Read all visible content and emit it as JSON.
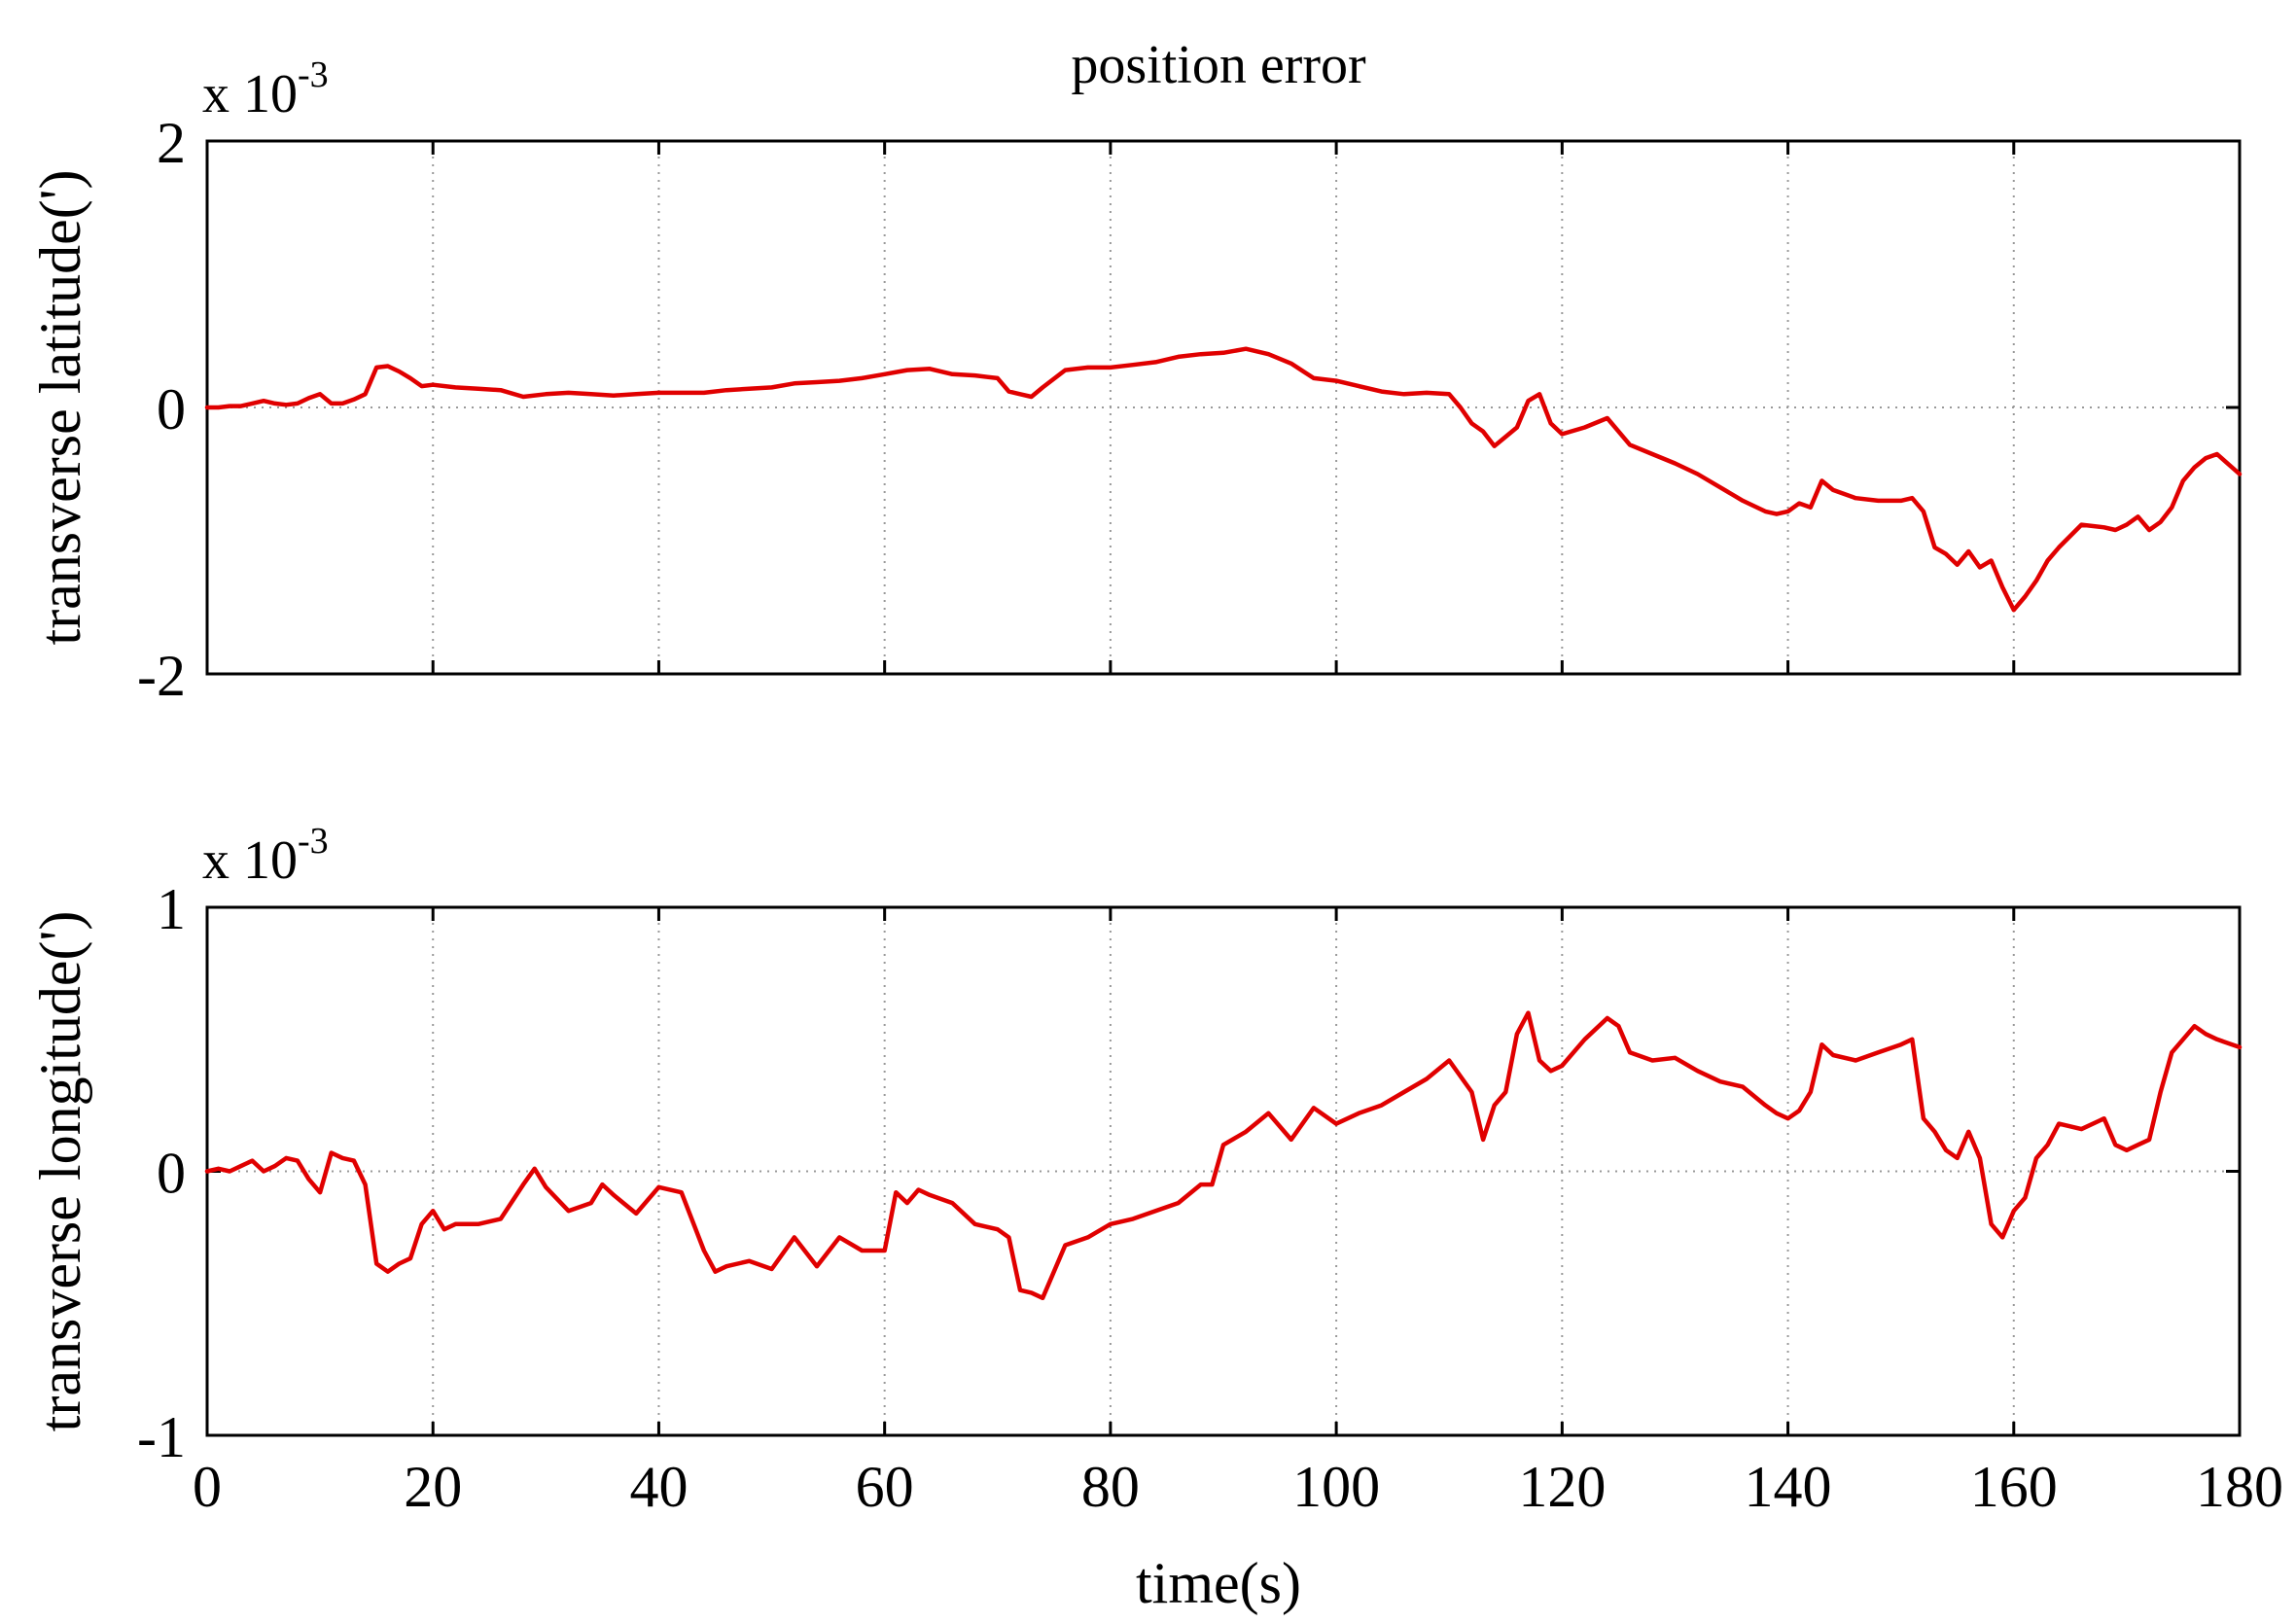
{
  "figure": {
    "title": "position error",
    "xlabel": "time(s)"
  },
  "colors": {
    "line": "#e00000",
    "axis": "#000000",
    "grid": "#999999",
    "background": "#ffffff"
  },
  "chart_data": [
    {
      "type": "line",
      "title": "position error",
      "xlabel": "",
      "ylabel": "transverse latitude(')",
      "multiplier": "x 10",
      "exponent": "-3",
      "xlim": [
        0,
        180
      ],
      "ylim": [
        -2,
        2
      ],
      "xticks": [
        0,
        20,
        40,
        60,
        80,
        100,
        120,
        140,
        160,
        180
      ],
      "yticks": [
        -2,
        0,
        2
      ],
      "xtick_labels": [
        "0",
        "20",
        "40",
        "60",
        "80",
        "100",
        "120",
        "140",
        "160",
        "180"
      ],
      "ytick_labels": [
        "-2",
        "0",
        "2"
      ],
      "show_xtick_labels": false,
      "grid": true,
      "legend": "none",
      "series": [
        {
          "color": "#e00000",
          "x": [
            0,
            1,
            2,
            3,
            4,
            5,
            6,
            7,
            8,
            9,
            10,
            11,
            12,
            13,
            14,
            15,
            16,
            17,
            18,
            19,
            20,
            22,
            24,
            26,
            28,
            30,
            32,
            34,
            36,
            38,
            40,
            42,
            44,
            46,
            48,
            50,
            52,
            54,
            56,
            58,
            60,
            62,
            64,
            66,
            68,
            70,
            71,
            72,
            73,
            74,
            76,
            78,
            80,
            82,
            84,
            86,
            88,
            90,
            92,
            94,
            96,
            98,
            100,
            102,
            104,
            106,
            108,
            110,
            111,
            112,
            113,
            114,
            115,
            116,
            117,
            118,
            119,
            120,
            122,
            124,
            125,
            126,
            128,
            130,
            132,
            134,
            136,
            138,
            139,
            140,
            141,
            142,
            143,
            144,
            146,
            148,
            150,
            151,
            152,
            153,
            154,
            155,
            156,
            157,
            158,
            159,
            160,
            161,
            162,
            163,
            164,
            166,
            168,
            169,
            170,
            171,
            172,
            173,
            174,
            175,
            176,
            177,
            178,
            180
          ],
          "y": [
            0.0,
            0.0,
            0.01,
            0.01,
            0.03,
            0.05,
            0.03,
            0.02,
            0.03,
            0.07,
            0.1,
            0.03,
            0.03,
            0.06,
            0.1,
            0.3,
            0.31,
            0.27,
            0.22,
            0.16,
            0.17,
            0.15,
            0.14,
            0.13,
            0.08,
            0.1,
            0.11,
            0.1,
            0.09,
            0.1,
            0.11,
            0.11,
            0.11,
            0.13,
            0.14,
            0.15,
            0.18,
            0.19,
            0.2,
            0.22,
            0.25,
            0.28,
            0.29,
            0.25,
            0.24,
            0.22,
            0.12,
            0.1,
            0.08,
            0.15,
            0.28,
            0.3,
            0.3,
            0.32,
            0.34,
            0.38,
            0.4,
            0.41,
            0.44,
            0.4,
            0.33,
            0.22,
            0.2,
            0.16,
            0.12,
            0.1,
            0.11,
            0.1,
            0.0,
            -0.12,
            -0.18,
            -0.29,
            -0.22,
            -0.15,
            0.05,
            0.1,
            -0.12,
            -0.2,
            -0.15,
            -0.08,
            -0.18,
            -0.28,
            -0.35,
            -0.42,
            -0.5,
            -0.6,
            -0.7,
            -0.78,
            -0.8,
            -0.78,
            -0.72,
            -0.75,
            -0.55,
            -0.62,
            -0.68,
            -0.7,
            -0.7,
            -0.68,
            -0.78,
            -1.05,
            -1.1,
            -1.18,
            -1.08,
            -1.2,
            -1.15,
            -1.35,
            -1.52,
            -1.42,
            -1.3,
            -1.15,
            -1.05,
            -0.88,
            -0.9,
            -0.92,
            -0.88,
            -0.82,
            -0.92,
            -0.86,
            -0.75,
            -0.55,
            -0.45,
            -0.38,
            -0.35,
            -0.5
          ]
        }
      ]
    },
    {
      "type": "line",
      "title": "",
      "xlabel": "time(s)",
      "ylabel": "transverse longitude(')",
      "multiplier": "x 10",
      "exponent": "-3",
      "xlim": [
        0,
        180
      ],
      "ylim": [
        -1,
        1
      ],
      "xticks": [
        0,
        20,
        40,
        60,
        80,
        100,
        120,
        140,
        160,
        180
      ],
      "yticks": [
        -1,
        0,
        1
      ],
      "xtick_labels": [
        "0",
        "20",
        "40",
        "60",
        "80",
        "100",
        "120",
        "140",
        "160",
        "180"
      ],
      "ytick_labels": [
        "-1",
        "0",
        "1"
      ],
      "show_xtick_labels": true,
      "grid": true,
      "legend": "none",
      "series": [
        {
          "color": "#e00000",
          "x": [
            0,
            1,
            2,
            3,
            4,
            5,
            6,
            7,
            8,
            9,
            10,
            11,
            12,
            13,
            14,
            15,
            16,
            17,
            18,
            19,
            20,
            21,
            22,
            24,
            26,
            28,
            29,
            30,
            32,
            34,
            35,
            36,
            38,
            40,
            42,
            44,
            45,
            46,
            48,
            50,
            52,
            54,
            56,
            58,
            60,
            61,
            62,
            63,
            64,
            66,
            68,
            70,
            71,
            72,
            73,
            74,
            76,
            78,
            80,
            82,
            84,
            86,
            88,
            89,
            90,
            92,
            94,
            96,
            98,
            100,
            102,
            104,
            106,
            108,
            110,
            112,
            113,
            114,
            115,
            116,
            117,
            118,
            119,
            120,
            122,
            124,
            125,
            126,
            128,
            130,
            132,
            134,
            136,
            138,
            139,
            140,
            141,
            142,
            143,
            144,
            146,
            148,
            150,
            151,
            152,
            153,
            154,
            155,
            156,
            157,
            158,
            159,
            160,
            161,
            162,
            163,
            164,
            166,
            168,
            169,
            170,
            171,
            172,
            173,
            174,
            175,
            176,
            177,
            178,
            180
          ],
          "y": [
            0.0,
            0.01,
            0.0,
            0.02,
            0.04,
            0.0,
            0.02,
            0.05,
            0.04,
            -0.03,
            -0.08,
            0.07,
            0.05,
            0.04,
            -0.05,
            -0.35,
            -0.38,
            -0.35,
            -0.33,
            -0.2,
            -0.15,
            -0.22,
            -0.2,
            -0.2,
            -0.18,
            -0.05,
            0.01,
            -0.06,
            -0.15,
            -0.12,
            -0.05,
            -0.09,
            -0.16,
            -0.06,
            -0.08,
            -0.3,
            -0.38,
            -0.36,
            -0.34,
            -0.37,
            -0.25,
            -0.36,
            -0.25,
            -0.3,
            -0.3,
            -0.08,
            -0.12,
            -0.07,
            -0.09,
            -0.12,
            -0.2,
            -0.22,
            -0.25,
            -0.45,
            -0.46,
            -0.48,
            -0.28,
            -0.25,
            -0.2,
            -0.18,
            -0.15,
            -0.12,
            -0.05,
            -0.05,
            0.1,
            0.15,
            0.22,
            0.12,
            0.24,
            0.18,
            0.22,
            0.25,
            0.3,
            0.35,
            0.42,
            0.3,
            0.12,
            0.25,
            0.3,
            0.52,
            0.6,
            0.42,
            0.38,
            0.4,
            0.5,
            0.58,
            0.55,
            0.45,
            0.42,
            0.43,
            0.38,
            0.34,
            0.32,
            0.25,
            0.22,
            0.2,
            0.23,
            0.3,
            0.48,
            0.44,
            0.42,
            0.45,
            0.48,
            0.5,
            0.2,
            0.15,
            0.08,
            0.05,
            0.15,
            0.05,
            -0.2,
            -0.25,
            -0.15,
            -0.1,
            0.05,
            0.1,
            0.18,
            0.16,
            0.2,
            0.1,
            0.08,
            0.1,
            0.12,
            0.3,
            0.45,
            0.5,
            0.55,
            0.52,
            0.5,
            0.47
          ]
        }
      ]
    }
  ]
}
